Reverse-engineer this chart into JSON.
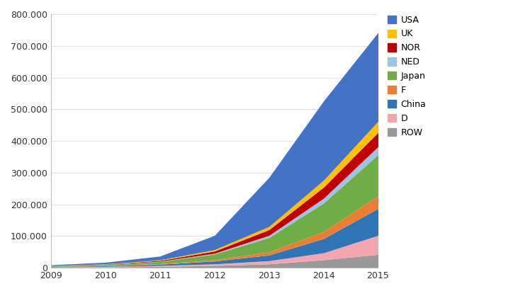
{
  "years": [
    2009,
    2010,
    2011,
    2012,
    2013,
    2014,
    2015
  ],
  "series": {
    "ROW": [
      1500,
      2500,
      4000,
      7000,
      12000,
      25000,
      42000
    ],
    "D": [
      800,
      1500,
      3000,
      5000,
      10000,
      22000,
      60000
    ],
    "China": [
      1000,
      2000,
      4000,
      9000,
      18000,
      45000,
      85000
    ],
    "F": [
      400,
      800,
      1500,
      4000,
      10000,
      22000,
      40000
    ],
    "Japan": [
      2000,
      3500,
      7000,
      18000,
      45000,
      90000,
      130000
    ],
    "NED": [
      200,
      400,
      900,
      2500,
      7000,
      15000,
      25000
    ],
    "NOR": [
      400,
      800,
      2500,
      7000,
      18000,
      35000,
      45000
    ],
    "UK": [
      400,
      700,
      1800,
      4500,
      10000,
      22000,
      35000
    ],
    "USA": [
      2500,
      5000,
      12000,
      45000,
      155000,
      250000,
      280000
    ]
  },
  "colors": {
    "ROW": "#999999",
    "D": "#f4a6b0",
    "China": "#2e75b6",
    "F": "#ed7d31",
    "Japan": "#70ad47",
    "NED": "#9dc3e6",
    "NOR": "#c00000",
    "UK": "#ffc000",
    "USA": "#4472c4"
  },
  "ylim": [
    0,
    800000
  ],
  "yticks": [
    0,
    100000,
    200000,
    300000,
    400000,
    500000,
    600000,
    700000,
    800000
  ],
  "ytick_labels": [
    "0",
    "100.000",
    "200.000",
    "300.000",
    "400.000",
    "500.000",
    "600.000",
    "700.000",
    "800.000"
  ],
  "legend_order": [
    "USA",
    "UK",
    "NOR",
    "NED",
    "Japan",
    "F",
    "China",
    "D",
    "ROW"
  ],
  "stack_order": [
    "ROW",
    "D",
    "China",
    "F",
    "Japan",
    "NED",
    "NOR",
    "UK",
    "USA"
  ],
  "background_color": "#ffffff",
  "figsize": [
    7.38,
    4.11
  ],
  "dpi": 100
}
